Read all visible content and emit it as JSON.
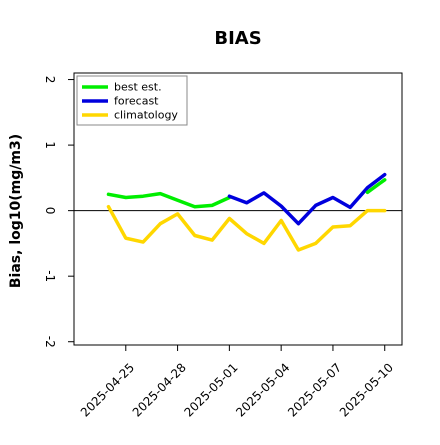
{
  "chart_data": {
    "type": "line",
    "title": "BIAS",
    "xlabel": "",
    "ylabel": "Bias, log10(mg/m3)",
    "ylim": [
      -2.05,
      2.1
    ],
    "yticks": [
      -2,
      -1,
      0,
      1,
      2
    ],
    "ytick_labels": [
      "-2",
      "-1",
      "0",
      "1",
      "2"
    ],
    "xlim": [
      "2025-04-22",
      "2025-05-11"
    ],
    "xticks": [
      "2025-04-25",
      "2025-04-28",
      "2025-05-01",
      "2025-05-04",
      "2025-05-07",
      "2025-05-10"
    ],
    "xtick_labels": [
      "2025-04-25",
      "2025-04-28",
      "2025-05-01",
      "2025-05-04",
      "2025-05-07",
      "2025-05-10"
    ],
    "highlight_tick": "2025-05-01",
    "highlight_color": "#228b22",
    "grid": false,
    "zero_line": true,
    "legend_position": "top-left",
    "x": [
      "2025-04-24",
      "2025-04-25",
      "2025-04-26",
      "2025-04-27",
      "2025-04-28",
      "2025-04-29",
      "2025-04-30",
      "2025-05-01",
      "2025-05-02",
      "2025-05-03",
      "2025-05-04",
      "2025-05-05",
      "2025-05-06",
      "2025-05-07",
      "2025-05-08",
      "2025-05-09",
      "2025-05-10"
    ],
    "series": [
      {
        "name": "best est.",
        "color": "#00ee00",
        "values": [
          null,
          null,
          null,
          null,
          null,
          null,
          null,
          null,
          null,
          null,
          null,
          null,
          null,
          null,
          null,
          0.28,
          0.47
        ]
      },
      {
        "name": "forecast",
        "color": "#0000dd",
        "values": [
          null,
          null,
          null,
          null,
          null,
          null,
          null,
          0.22,
          0.12,
          0.27,
          0.07,
          -0.2,
          0.08,
          0.2,
          0.05,
          0.35,
          0.55
        ]
      },
      {
        "name": "climatology",
        "color": "#ffd700",
        "values": [
          0.06,
          -0.42,
          -0.48,
          -0.2,
          -0.05,
          -0.38,
          -0.45,
          -0.12,
          -0.35,
          -0.5,
          -0.15,
          -0.6,
          -0.5,
          -0.25,
          -0.23,
          0.0,
          0.0
        ]
      }
    ],
    "best_est_segment": {
      "x": [
        "2025-04-24",
        "2025-04-25",
        "2025-04-26",
        "2025-04-27",
        "2025-04-28",
        "2025-04-29",
        "2025-04-30",
        "2025-05-01"
      ],
      "values": [
        0.25,
        0.2,
        0.22,
        0.26,
        0.16,
        0.06,
        0.08,
        0.2
      ]
    }
  }
}
